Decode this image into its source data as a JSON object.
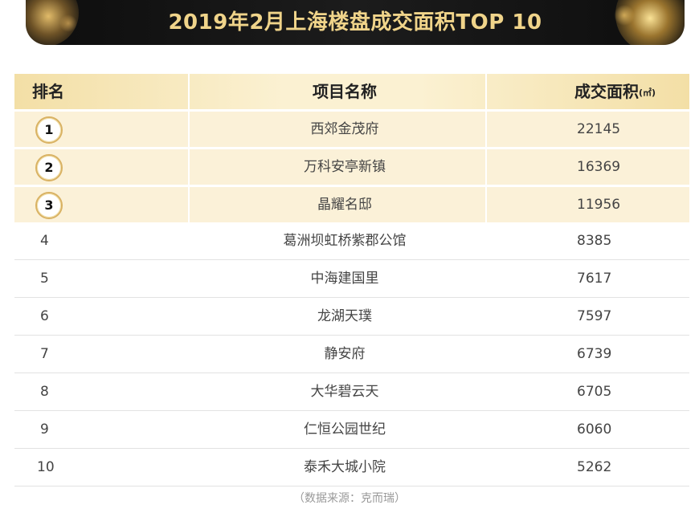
{
  "banner": {
    "title": "2019年2月上海楼盘成交面积TOP 10"
  },
  "table": {
    "headers": {
      "rank": "排名",
      "project": "项目名称",
      "area": "成交面积",
      "unit": "(㎡)"
    },
    "rows": [
      {
        "rank": "1",
        "project": "西郊金茂府",
        "area": "22145"
      },
      {
        "rank": "2",
        "project": "万科安亭新镇",
        "area": "16369"
      },
      {
        "rank": "3",
        "project": "晶耀名邸",
        "area": "11956"
      },
      {
        "rank": "4",
        "project": "葛洲坝虹桥紫郡公馆",
        "area": "8385"
      },
      {
        "rank": "5",
        "project": "中海建国里",
        "area": "7617"
      },
      {
        "rank": "6",
        "project": "龙湖天璞",
        "area": "7597"
      },
      {
        "rank": "7",
        "project": "静安府",
        "area": "6739"
      },
      {
        "rank": "8",
        "project": "大华碧云天",
        "area": "6705"
      },
      {
        "rank": "9",
        "project": "仁恒公园世纪",
        "area": "6060"
      },
      {
        "rank": "10",
        "project": "泰禾大城小院",
        "area": "5262"
      }
    ]
  },
  "footer": {
    "source": "（数据来源：克而瑞）"
  },
  "colors": {
    "gold": "#f0d48a",
    "banner_bg": "#111111",
    "row_highlight": "#fbf1d8"
  }
}
